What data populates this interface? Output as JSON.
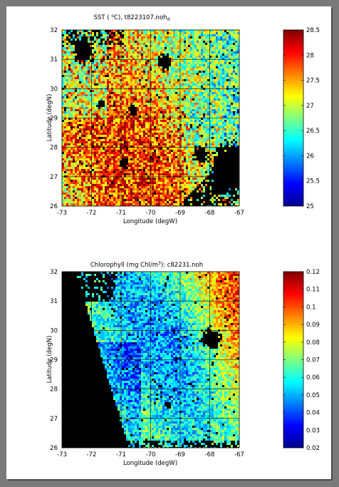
{
  "chart_data": [
    {
      "type": "heatmap",
      "title_main": "SST ( ",
      "title_degree": "o",
      "title_rest": "C), t8223107.noh",
      "title_sub": "d",
      "xlabel": "Longitude (degW)",
      "ylabel": "Latitude (degN)",
      "xlim": [
        -73,
        -67
      ],
      "ylim": [
        26,
        32
      ],
      "xticks": [
        -73,
        -72,
        -71,
        -70,
        -69,
        -68,
        -67
      ],
      "yticks": [
        26,
        27,
        28,
        29,
        30,
        31,
        32
      ],
      "grid": true,
      "colormap": "jet",
      "colorbar_range": [
        25,
        28.5
      ],
      "colorbar_ticks": [
        "25",
        "25.5",
        "26",
        "26.5",
        "27",
        "27.5",
        "28",
        "28.5"
      ],
      "land_color": "#000000"
    },
    {
      "type": "heatmap",
      "title_main": "Chlorophyll (mg Chl/m",
      "title_super": "3",
      "title_rest": "): c82231.noh",
      "xlabel": "Longitude (degW)",
      "ylabel": "Latitude (degN)",
      "xlim": [
        -73,
        -67
      ],
      "ylim": [
        26,
        32
      ],
      "xticks": [
        -73,
        -72,
        -71,
        -70,
        -69,
        -68,
        -67
      ],
      "yticks": [
        26,
        27,
        28,
        29,
        30,
        31,
        32
      ],
      "grid": true,
      "colormap": "jet",
      "colorbar_range": [
        0.02,
        0.12
      ],
      "colorbar_ticks": [
        "0.02",
        "0.03",
        "0.04",
        "0.05",
        "0.06",
        "0.07",
        "0.08",
        "0.09",
        "0.1",
        "0.11",
        "0.12"
      ],
      "land_color": "#000000"
    }
  ]
}
